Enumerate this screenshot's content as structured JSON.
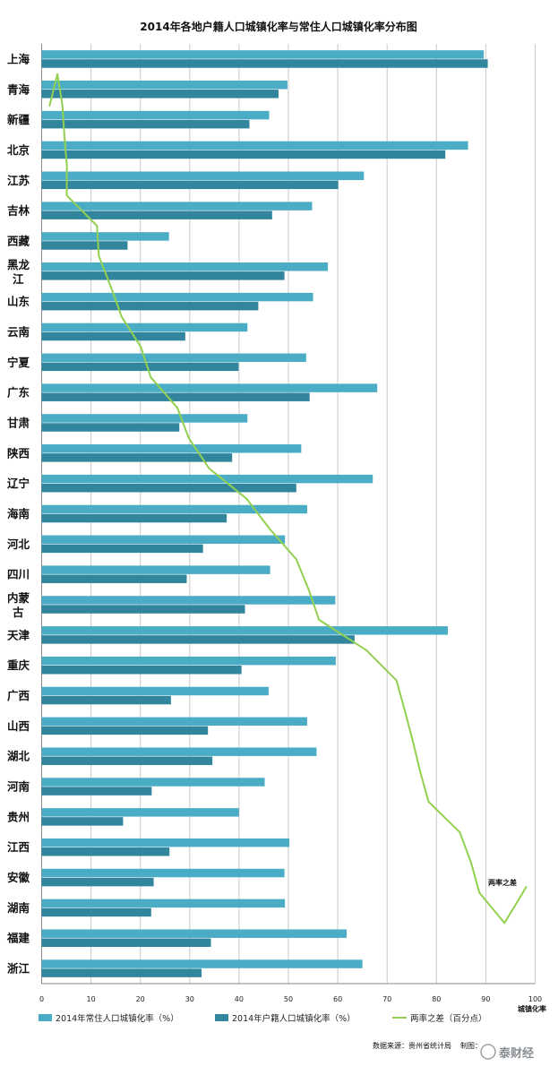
{
  "chart_data": {
    "type": "bar",
    "orientation": "horizontal",
    "title": "2014年各地户籍人口城镇化率与常住人口城镇化率分布图",
    "xlabel": "城镇化率",
    "xlim": [
      0,
      100
    ],
    "xticks": [
      0,
      10,
      20,
      30,
      40,
      50,
      60,
      70,
      80,
      90,
      100
    ],
    "grid": true,
    "legend_position": "bottom",
    "colors": {
      "resident": "#4bacc6",
      "household": "#31859c",
      "gap": "#92d050"
    },
    "categories": [
      [
        "上海"
      ],
      [
        "青海"
      ],
      [
        "新疆"
      ],
      [
        "北京"
      ],
      [
        "江苏"
      ],
      [
        "吉林"
      ],
      [
        "西藏"
      ],
      [
        "黑龙",
        "江"
      ],
      [
        "山东"
      ],
      [
        "云南"
      ],
      [
        "宁夏"
      ],
      [
        "广东"
      ],
      [
        "甘肃"
      ],
      [
        "陕西"
      ],
      [
        "辽宁"
      ],
      [
        "海南"
      ],
      [
        "河北"
      ],
      [
        "四川"
      ],
      [
        "内蒙",
        "古"
      ],
      [
        "天津"
      ],
      [
        "重庆"
      ],
      [
        "广西"
      ],
      [
        "山西"
      ],
      [
        "湖北"
      ],
      [
        "河南"
      ],
      [
        "贵州"
      ],
      [
        "江西"
      ],
      [
        "安徽"
      ],
      [
        "湖南"
      ],
      [
        "福建"
      ],
      [
        "浙江"
      ]
    ],
    "series": [
      {
        "name": "2014年常住人口城镇化率（%）",
        "type": "bar",
        "values": [
          89.6,
          49.8,
          46.1,
          86.4,
          65.3,
          54.8,
          25.8,
          58.0,
          55.0,
          41.7,
          53.6,
          68.0,
          41.7,
          52.6,
          67.1,
          53.8,
          49.3,
          46.3,
          59.5,
          82.3,
          59.6,
          46.0,
          53.8,
          55.7,
          45.2,
          40.0,
          50.2,
          49.2,
          49.3,
          61.8,
          65.0
        ]
      },
      {
        "name": "2014年户籍人口城镇化率（%）",
        "type": "bar",
        "values": [
          90.4,
          48.0,
          42.1,
          81.8,
          60.1,
          46.7,
          17.4,
          49.2,
          43.9,
          29.1,
          39.9,
          54.3,
          27.9,
          38.6,
          51.6,
          37.5,
          32.7,
          29.4,
          41.2,
          63.4,
          40.5,
          26.2,
          33.7,
          34.6,
          22.3,
          16.5,
          25.9,
          22.7,
          22.2,
          34.3,
          32.4
        ]
      },
      {
        "name": "两率之差（百分点）",
        "type": "line",
        "values": [
          1.6,
          3.2,
          4.2,
          4.6,
          5.1,
          5.1,
          11.2,
          11.6,
          14.0,
          16.2,
          20.1,
          22.1,
          27.5,
          29.8,
          33.9,
          41.5,
          46.2,
          51.6,
          54.1,
          56.2,
          65.8,
          71.9,
          73.6,
          75.2,
          76.7,
          78.4,
          84.7,
          87.0,
          88.7,
          93.8,
          98.2
        ],
        "annotation": "两率之差"
      }
    ]
  },
  "source_note": "数据来源：贵州省统计局",
  "maker_note": "制图：",
  "watermark": "泰财经"
}
